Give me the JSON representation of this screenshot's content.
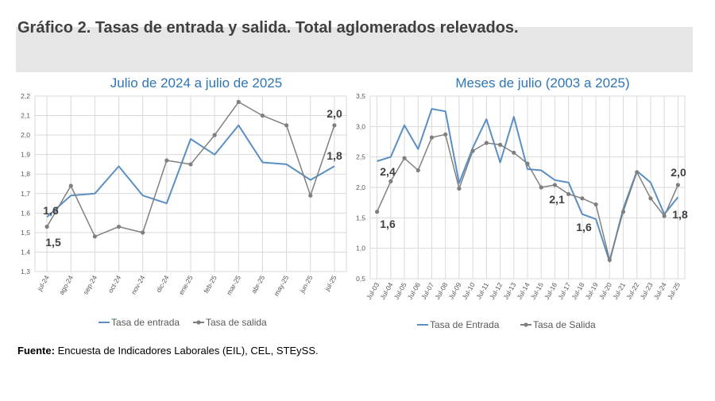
{
  "figure_title": "Gráfico 2. Tasas de entrada y salida. Total aglomerados relevados.",
  "source_label": "Fuente:",
  "source_text": " Encuesta de Indicadores Laborales (EIL), CEL, STEySS.",
  "colors": {
    "entrada": "#5b8fc3",
    "salida": "#808080",
    "grid": "#d9d9d9",
    "title": "#2e75b6"
  },
  "chart_data": [
    {
      "type": "line",
      "title": "Julio de 2024 a julio de 2025",
      "categories": [
        "jul-24",
        "ago-24",
        "sep-24",
        "oct-24",
        "nov-24",
        "dic-24",
        "ene-25",
        "feb-25",
        "mar-25",
        "abr-25",
        "may-25",
        "jun-25",
        "jul-25"
      ],
      "ylim": [
        1.3,
        2.2
      ],
      "yticks": [
        "1,3",
        "1,4",
        "1,5",
        "1,6",
        "1,7",
        "1,8",
        "1,9",
        "2,0",
        "2,1",
        "2,2"
      ],
      "series": [
        {
          "name": "Tasa de entrada",
          "values": [
            1.58,
            1.69,
            1.7,
            1.84,
            1.69,
            1.65,
            1.98,
            1.9,
            2.05,
            1.86,
            1.85,
            1.77,
            1.84
          ]
        },
        {
          "name": "Tasa de salida",
          "values": [
            1.53,
            1.74,
            1.48,
            1.53,
            1.5,
            1.87,
            1.85,
            2.0,
            2.17,
            2.1,
            2.05,
            1.69,
            2.05
          ]
        }
      ],
      "annotations": [
        "1,6",
        "1,5",
        "2,0",
        "1,8"
      ]
    },
    {
      "type": "line",
      "title": "Meses de julio (2003 a 2025)",
      "categories": [
        "Jul-03",
        "Jul-04",
        "Jul-05",
        "Jul-06",
        "Jul-07",
        "Jul-08",
        "Jul-09",
        "Jul-10",
        "Jul-11",
        "Jul-12",
        "Jul-13",
        "Jul-14",
        "Jul-15",
        "Jul-16",
        "Jul-17",
        "Jul-18",
        "Jul-19",
        "Jul-20",
        "Jul-21",
        "Jul-22",
        "Jul-23",
        "Jul-24",
        "Jul-25"
      ],
      "ylim": [
        0.5,
        3.5
      ],
      "yticks": [
        "0,5",
        "1,0",
        "1,5",
        "2,0",
        "2,5",
        "3,0",
        "3,5"
      ],
      "series": [
        {
          "name": "Tasa de Entrada",
          "values": [
            2.43,
            2.5,
            3.02,
            2.63,
            3.29,
            3.25,
            2.07,
            2.65,
            3.12,
            2.41,
            3.16,
            2.3,
            2.28,
            2.12,
            2.08,
            1.56,
            1.48,
            0.78,
            1.65,
            2.27,
            2.08,
            1.56,
            1.84
          ]
        },
        {
          "name": "Tasa de Salida",
          "values": [
            1.6,
            2.1,
            2.48,
            2.28,
            2.82,
            2.87,
            1.98,
            2.6,
            2.73,
            2.7,
            2.57,
            2.39,
            2.0,
            2.04,
            1.89,
            1.82,
            1.72,
            0.81,
            1.6,
            2.25,
            1.82,
            1.53,
            2.04
          ]
        }
      ],
      "annotations": [
        "2,4",
        "1,6",
        "2,1",
        "1,6",
        "2,0",
        "1,8"
      ]
    }
  ]
}
